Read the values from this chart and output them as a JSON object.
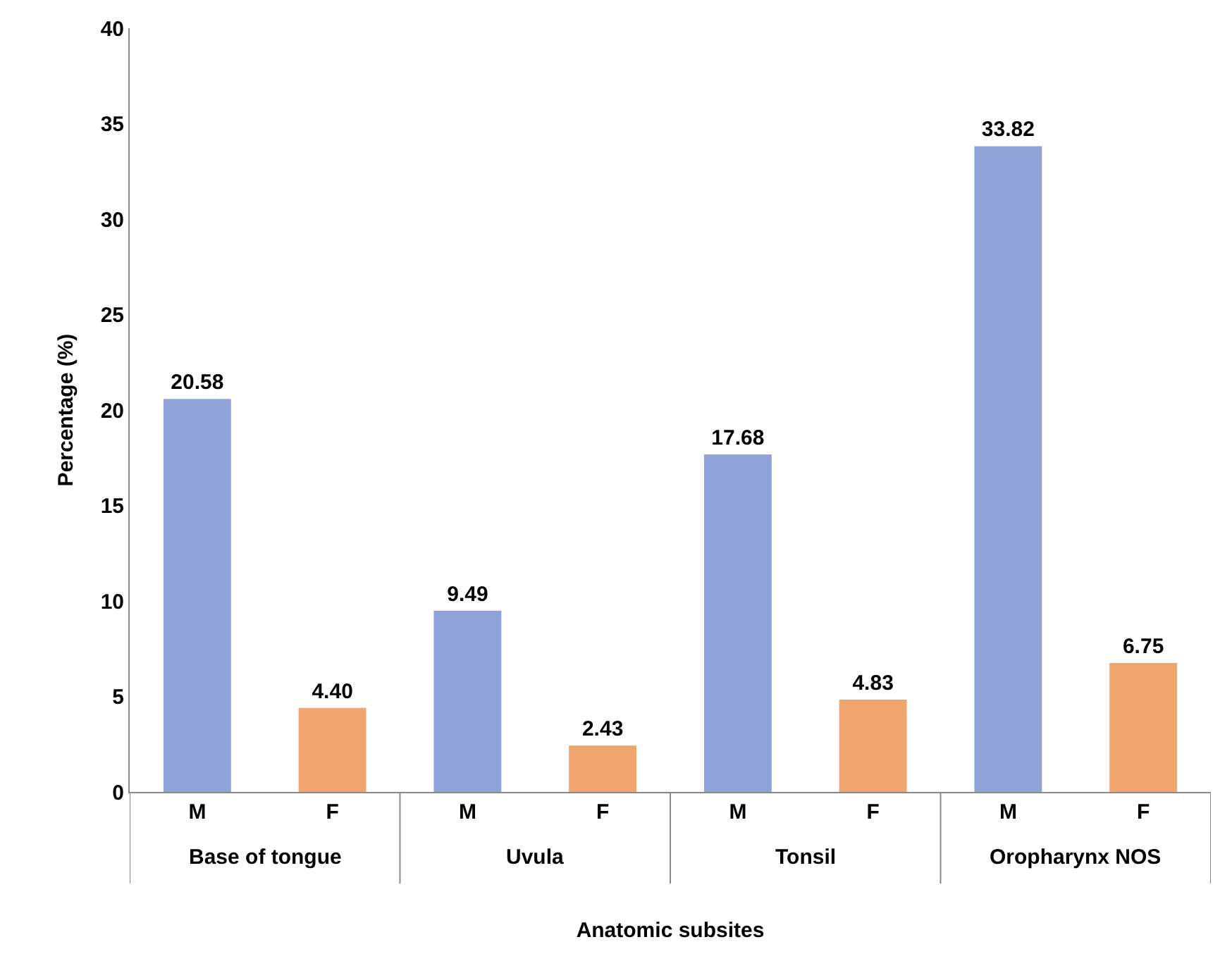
{
  "chart_data": {
    "type": "bar",
    "xlabel": "Anatomic subsites",
    "ylabel": "Percentage (%)",
    "categories": [
      "M",
      "F",
      "M",
      "F",
      "M",
      "F",
      "M",
      "F"
    ],
    "values": [
      20.58,
      4.4,
      9.49,
      2.43,
      17.68,
      4.83,
      33.82,
      6.75
    ],
    "colors": [
      "#8fa3d8",
      "#f0a46e",
      "#8fa3d8",
      "#f0a46e",
      "#8fa3d8",
      "#f0a46e",
      "#8fa3d8",
      "#f0a46e"
    ],
    "value_labels": [
      "20.58",
      "4.40",
      "9.49",
      "2.43",
      "17.68",
      "4.83",
      "33.82",
      "6.75"
    ],
    "annotations": [
      "Base of tongue",
      "Uvula",
      "Tonsil",
      "Oropharynx NOS"
    ],
    "ylim": [
      0,
      40
    ],
    "yticks": [
      0,
      5,
      10,
      15,
      20,
      25,
      30,
      35,
      40
    ],
    "legend": false
  }
}
